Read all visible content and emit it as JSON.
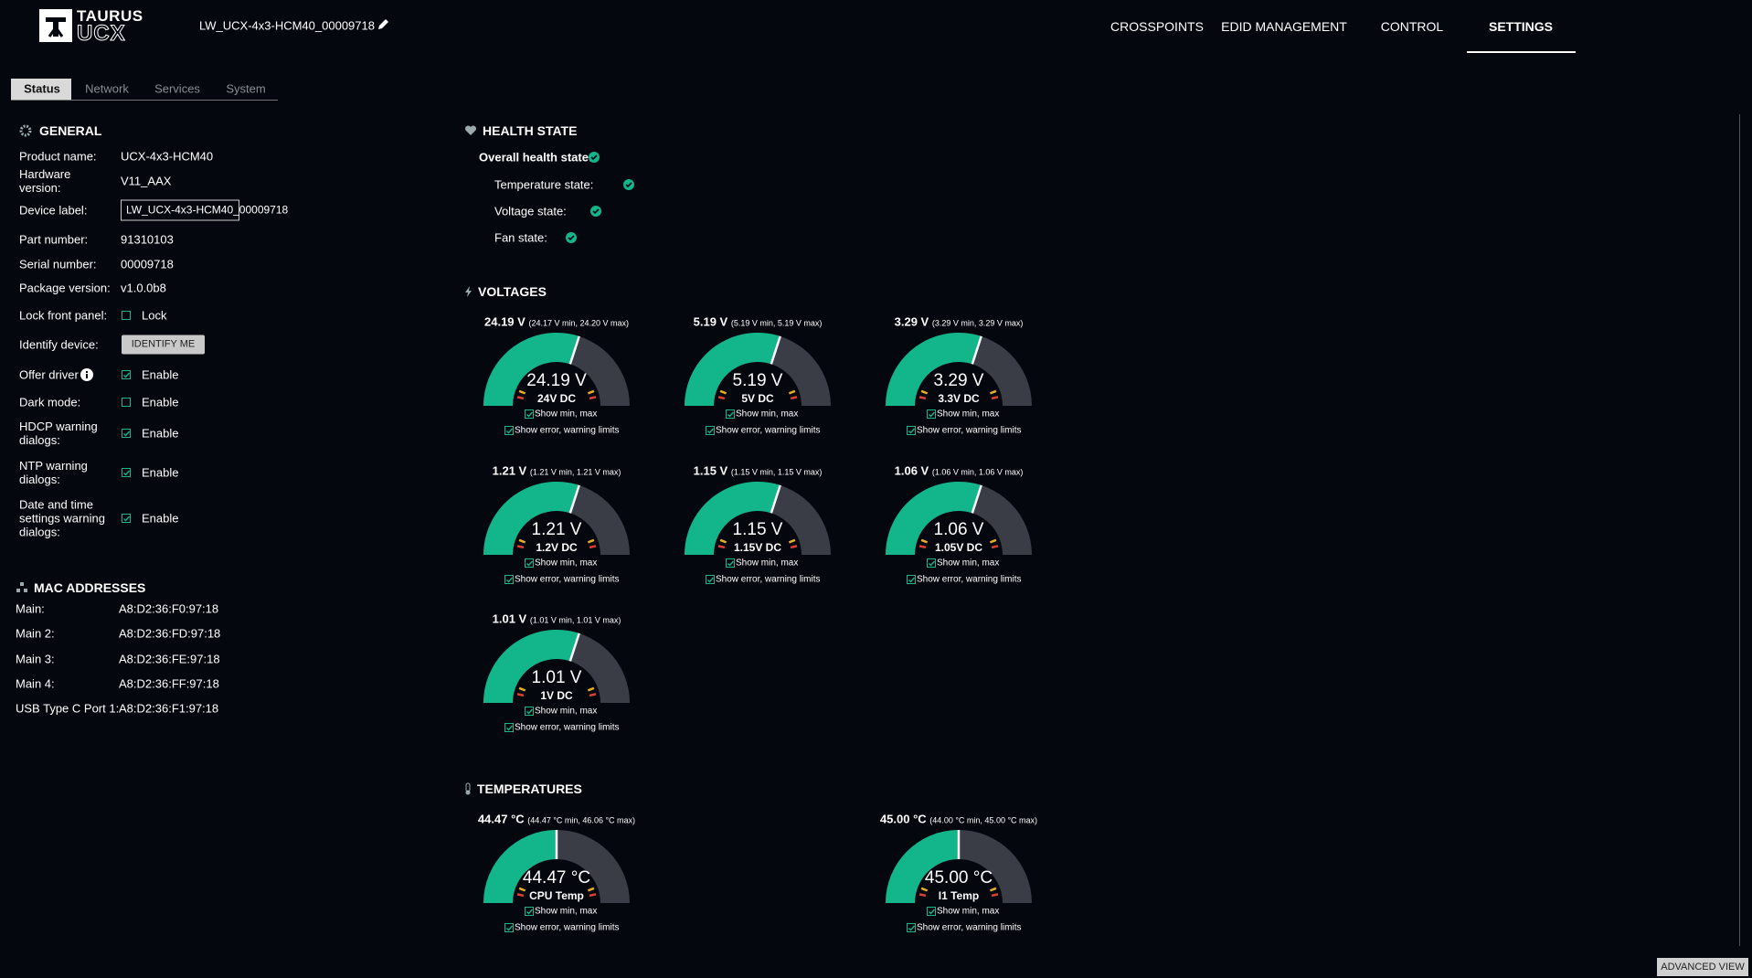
{
  "header": {
    "brand_top": "TAURUS",
    "brand_bottom": "UCX",
    "device_name": "LW_UCX-4x3-HCM40_00009718",
    "nav": [
      "CROSSPOINTS",
      "EDID MANAGEMENT",
      "CONTROL",
      "SETTINGS"
    ]
  },
  "tabs": [
    "Status",
    "Network",
    "Services",
    "System"
  ],
  "general": {
    "heading": "GENERAL",
    "rows": [
      {
        "label": "Product name:",
        "value": "UCX-4x3-HCM40"
      },
      {
        "label": "Hardware version:",
        "value": "V11_AAX"
      },
      {
        "label": "Device label:",
        "input": "LW_UCX-4x3-HCM40_00009718"
      },
      {
        "label": "Part number:",
        "value": "91310103"
      },
      {
        "label": "Serial number:",
        "value": "00009718"
      },
      {
        "label": "Package version:",
        "value": "v1.0.0b8"
      },
      {
        "label": "Lock front panel:",
        "option": "Lock",
        "checked": false
      },
      {
        "label": "Identify device:",
        "button": "IDENTIFY ME"
      },
      {
        "label": "Offer driver",
        "option": "Enable",
        "checked": true
      },
      {
        "label": "Dark mode:",
        "option": "Enable",
        "checked": false
      },
      {
        "label": "HDCP warning dialogs:",
        "option": "Enable",
        "checked": true
      },
      {
        "label": "NTP warning dialogs:",
        "option": "Enable",
        "checked": true
      },
      {
        "label": "Date and time settings warning dialogs:",
        "option": "Enable",
        "checked": true
      }
    ]
  },
  "mac": {
    "heading": "MAC ADDRESSES",
    "rows": [
      {
        "label": "Main:",
        "value": "A8:D2:36:F0:97:18"
      },
      {
        "label": "Main 2:",
        "value": "A8:D2:36:FD:97:18"
      },
      {
        "label": "Main 3:",
        "value": "A8:D2:36:FE:97:18"
      },
      {
        "label": "Main 4:",
        "value": "A8:D2:36:FF:97:18"
      },
      {
        "label": "USB Type C Port 1:",
        "value": "A8:D2:36:F1:97:18"
      }
    ]
  },
  "health": {
    "heading": "HEALTH STATE",
    "overall": "Overall health state:",
    "states": [
      "Temperature state:",
      "Voltage state:",
      "Fan state:"
    ]
  },
  "gauge_options": [
    "Show min, max",
    "Show error, warning limits"
  ],
  "voltages": {
    "heading": "VOLTAGES",
    "gauges": [
      {
        "reading": "24.19 V",
        "range": "(24.17 V min, 24.20 V max)",
        "label": "24V DC"
      },
      {
        "reading": "5.19 V",
        "range": "(5.19 V min, 5.19 V max)",
        "label": "5V DC"
      },
      {
        "reading": "3.29 V",
        "range": "(3.29 V min, 3.29 V max)",
        "label": "3.3V DC"
      },
      {
        "reading": "1.21 V",
        "range": "(1.21 V min, 1.21 V max)",
        "label": "1.2V DC"
      },
      {
        "reading": "1.15 V",
        "range": "(1.15 V min, 1.15 V max)",
        "label": "1.15V DC"
      },
      {
        "reading": "1.06 V",
        "range": "(1.06 V min, 1.06 V max)",
        "label": "1.05V DC"
      },
      {
        "reading": "1.01 V",
        "range": "(1.01 V min, 1.01 V max)",
        "label": "1V DC"
      }
    ]
  },
  "temperatures": {
    "heading": "TEMPERATURES",
    "gauges": [
      {
        "reading": "44.47 °C",
        "range": "(44.47 °C min, 46.06 °C max)",
        "label": "CPU Temp"
      },
      {
        "reading": "45.00 °C",
        "range": "(44.00 °C min, 45.00 °C max)",
        "label": "I1 Temp"
      }
    ]
  },
  "advanced_view": "ADVANCED VIEW"
}
